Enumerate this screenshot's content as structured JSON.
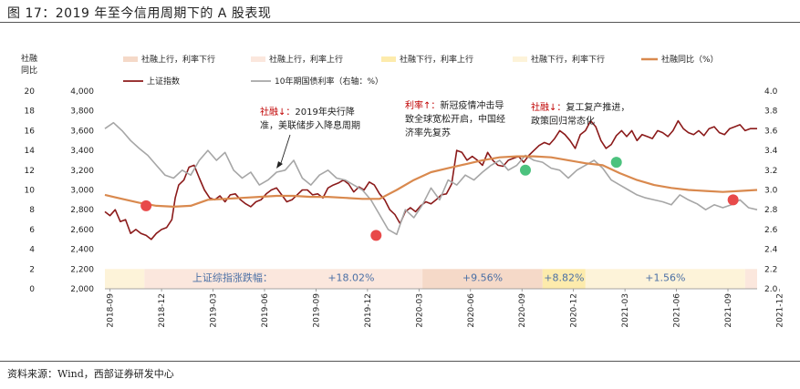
{
  "title": "图 17：2019 年至今信用周期下的 A 股表现",
  "source": "资料来源：Wind，西部证券研发中心",
  "colors": {
    "index_line": "#8B1A1A",
    "bond_line": "#A6A6A6",
    "tsf_line": "#D9894E",
    "band_peach": "#F5D9C8",
    "band_pink": "#FBE7DD",
    "band_yellow": "#FDEBAC",
    "band_cream": "#FDF3D9",
    "dot_red": "#E84A4A",
    "dot_green": "#4CC27E",
    "annotation_red": "#C00000"
  },
  "chart_data": {
    "type": "line",
    "legend": [
      {
        "key": "band_peach",
        "label": "社融上行，利率下行"
      },
      {
        "key": "band_pink",
        "label": "社融上行，利率上行"
      },
      {
        "key": "band_yellow",
        "label": "社融下行，利率上行"
      },
      {
        "key": "band_cream",
        "label": "社融下行，利率下行"
      },
      {
        "key": "tsf_line",
        "label": "社融同比（%）"
      },
      {
        "key": "index_line",
        "label": "上证指数"
      },
      {
        "key": "bond_line",
        "label": "10年期国债利率（右轴：%）"
      }
    ],
    "left_axis1": {
      "title": [
        "社融",
        "同比"
      ],
      "ticks": [
        "20",
        "18",
        "16",
        "14",
        "12",
        "10",
        "8",
        "6",
        "4",
        "2",
        "0"
      ],
      "ylim": [
        0,
        20
      ]
    },
    "left_axis2": {
      "ticks": [
        "4,000",
        "3,800",
        "3,600",
        "3,400",
        "3,200",
        "3,000",
        "2,800",
        "2,600",
        "2,400",
        "2,200",
        "2,000"
      ],
      "ylim": [
        2000,
        4000
      ]
    },
    "right_axis": {
      "ticks": [
        "4.0",
        "3.8",
        "3.6",
        "3.4",
        "3.2",
        "3.0",
        "2.8",
        "2.6",
        "2.4",
        "2.2",
        "2.0"
      ],
      "ylim": [
        2.0,
        4.0
      ]
    },
    "x_ticks": [
      "2018-09",
      "2018-12",
      "2019-03",
      "2019-06",
      "2019-09",
      "2019-12",
      "2020-03",
      "2020-06",
      "2020-09",
      "2020-12",
      "2021-03",
      "2021-06",
      "2021-09",
      "2021-12"
    ],
    "x_range": [
      "2018-09",
      "2022-01"
    ],
    "bands": [
      {
        "start": 0.0,
        "end": 2.3,
        "color": "band_cream",
        "label": ""
      },
      {
        "start": 2.3,
        "end": 18.5,
        "color": "band_pink",
        "label": "上证综指涨跌幅：　　　　　　+18.02%"
      },
      {
        "start": 18.5,
        "end": 25.5,
        "color": "band_peach",
        "label": "+9.56%"
      },
      {
        "start": 25.5,
        "end": 28.0,
        "color": "band_yellow",
        "label": "+8.82%"
      },
      {
        "start": 28.0,
        "end": 37.3,
        "color": "band_cream",
        "label": "+1.56%"
      },
      {
        "start": 37.3,
        "end": 38.0,
        "color": "band_pink",
        "label": ""
      }
    ],
    "series": [
      {
        "name": "上证指数",
        "axis": "left2",
        "x": [
          0,
          0.3,
          0.6,
          0.9,
          1.2,
          1.5,
          1.8,
          2.1,
          2.4,
          2.7,
          3.0,
          3.3,
          3.6,
          3.9,
          4.1,
          4.3,
          4.6,
          4.9,
          5.2,
          5.5,
          5.8,
          6.1,
          6.4,
          6.7,
          7.0,
          7.3,
          7.6,
          7.9,
          8.2,
          8.5,
          8.8,
          9.1,
          9.4,
          9.7,
          10.0,
          10.3,
          10.6,
          10.9,
          11.2,
          11.5,
          11.8,
          12.1,
          12.4,
          12.7,
          13.0,
          13.3,
          13.6,
          13.9,
          14.2,
          14.5,
          14.8,
          15.1,
          15.4,
          15.7,
          16.0,
          16.3,
          16.6,
          16.9,
          17.2,
          17.5,
          17.8,
          18.1,
          18.4,
          18.7,
          19.0,
          19.3,
          19.6,
          19.9,
          20.2,
          20.5,
          20.8,
          21.1,
          21.4,
          21.7,
          22.0,
          22.3,
          22.6,
          22.9,
          23.2,
          23.5,
          23.8,
          24.1,
          24.4,
          24.7,
          25.0,
          25.3,
          25.6,
          25.9,
          26.2,
          26.5,
          26.8,
          27.1,
          27.4,
          27.7,
          28.0,
          28.3,
          28.6,
          28.9,
          29.2,
          29.5,
          29.8,
          30.1,
          30.4,
          30.7,
          31.0,
          31.3,
          31.6,
          31.9,
          32.2,
          32.5,
          32.8,
          33.1,
          33.4,
          33.7,
          34.0,
          34.3,
          34.6,
          34.9,
          35.2,
          35.5,
          35.8,
          36.1,
          36.4,
          36.7,
          37.0,
          37.3,
          37.6,
          38.0
        ],
        "values": [
          2780,
          2740,
          2800,
          2680,
          2700,
          2560,
          2600,
          2560,
          2540,
          2500,
          2560,
          2600,
          2620,
          2700,
          2920,
          3050,
          3100,
          3230,
          3250,
          3120,
          3000,
          2920,
          2900,
          2940,
          2880,
          2950,
          2960,
          2900,
          2860,
          2830,
          2880,
          2900,
          2960,
          3000,
          3020,
          2950,
          2880,
          2900,
          2950,
          3000,
          3000,
          2950,
          2960,
          2920,
          3020,
          3050,
          3070,
          3100,
          3060,
          2980,
          3030,
          3000,
          3080,
          3050,
          2960,
          2900,
          2800,
          2750,
          2660,
          2780,
          2820,
          2780,
          2840,
          2880,
          2860,
          2900,
          2950,
          2960,
          3060,
          3400,
          3380,
          3300,
          3340,
          3300,
          3250,
          3380,
          3300,
          3250,
          3240,
          3300,
          3320,
          3340,
          3280,
          3350,
          3400,
          3450,
          3480,
          3460,
          3520,
          3600,
          3560,
          3500,
          3420,
          3560,
          3600,
          3700,
          3640,
          3500,
          3420,
          3460,
          3550,
          3600,
          3540,
          3600,
          3500,
          3560,
          3540,
          3520,
          3600,
          3580,
          3540,
          3600,
          3700,
          3620,
          3580,
          3560,
          3600,
          3550,
          3620,
          3640,
          3580,
          3560,
          3620,
          3640,
          3660,
          3600,
          3620,
          3620
        ]
      },
      {
        "name": "10年期国债利率",
        "axis": "right",
        "x": [
          0,
          0.5,
          1.0,
          1.5,
          2.0,
          2.5,
          3.0,
          3.5,
          4.0,
          4.5,
          5.0,
          5.5,
          6.0,
          6.5,
          7.0,
          7.5,
          8.0,
          8.5,
          9.0,
          9.5,
          10.0,
          10.5,
          11.0,
          11.5,
          12.0,
          12.5,
          13.0,
          13.5,
          14.0,
          14.5,
          15.0,
          15.5,
          16.0,
          16.5,
          17.0,
          17.5,
          18.0,
          18.5,
          19.0,
          19.5,
          20.0,
          20.5,
          21.0,
          21.5,
          22.0,
          22.5,
          23.0,
          23.5,
          24.0,
          24.5,
          25.0,
          25.5,
          26.0,
          26.5,
          27.0,
          27.5,
          28.0,
          28.5,
          29.0,
          29.5,
          30.0,
          30.5,
          31.0,
          31.5,
          32.0,
          32.5,
          33.0,
          33.5,
          34.0,
          34.5,
          35.0,
          35.5,
          36.0,
          36.5,
          37.0,
          37.5,
          38.0
        ],
        "values": [
          3.62,
          3.68,
          3.6,
          3.5,
          3.42,
          3.35,
          3.25,
          3.15,
          3.12,
          3.2,
          3.15,
          3.3,
          3.4,
          3.3,
          3.38,
          3.2,
          3.12,
          3.18,
          3.05,
          3.1,
          3.18,
          3.2,
          3.3,
          3.12,
          3.05,
          3.15,
          3.2,
          3.12,
          3.1,
          3.05,
          3.0,
          2.9,
          2.75,
          2.6,
          2.55,
          2.8,
          2.72,
          2.85,
          3.02,
          2.9,
          3.1,
          3.05,
          3.15,
          3.1,
          3.18,
          3.25,
          3.3,
          3.2,
          3.25,
          3.35,
          3.3,
          3.28,
          3.22,
          3.2,
          3.12,
          3.2,
          3.25,
          3.3,
          3.22,
          3.1,
          3.05,
          3.0,
          2.95,
          2.92,
          2.9,
          2.88,
          2.85,
          2.95,
          2.9,
          2.86,
          2.8,
          2.85,
          2.82,
          2.85,
          2.9,
          2.82,
          2.8
        ]
      },
      {
        "name": "社融同比（%）",
        "axis": "left1",
        "x": [
          0,
          1,
          2,
          3,
          4,
          5,
          6,
          7,
          8,
          9,
          10,
          11,
          12,
          13,
          14,
          15,
          16,
          17,
          18,
          19,
          20,
          21,
          22,
          23,
          24,
          25,
          26,
          27,
          28,
          29,
          30,
          31,
          32,
          33,
          34,
          35,
          36,
          37,
          38
        ],
        "values": [
          9.5,
          9.1,
          8.7,
          8.4,
          8.3,
          8.4,
          9.0,
          9.1,
          9.2,
          9.3,
          9.4,
          9.4,
          9.3,
          9.3,
          9.2,
          9.1,
          9.1,
          10.0,
          11.0,
          11.8,
          12.2,
          12.6,
          13.0,
          13.3,
          13.4,
          13.4,
          13.3,
          13.0,
          12.7,
          12.5,
          11.7,
          11.0,
          10.5,
          10.2,
          10.0,
          9.9,
          9.8,
          9.9,
          10.0
        ]
      }
    ],
    "dots": [
      {
        "x": 2.4,
        "value": 8.4,
        "color": "dot_red"
      },
      {
        "x": 15.8,
        "value": 5.4,
        "color": "dot_red"
      },
      {
        "x": 24.5,
        "value": 12.0,
        "color": "dot_green"
      },
      {
        "x": 29.8,
        "value": 12.8,
        "color": "dot_green"
      },
      {
        "x": 36.6,
        "value": 9.0,
        "color": "dot_red"
      }
    ],
    "annotations": [
      {
        "red": "社融↓：",
        "lines": [
          "2019年央行降",
          "准，美联储步入降息周期"
        ]
      },
      {
        "red": "利率↑：",
        "lines": [
          "新冠疫情冲击导",
          "致全球宽松开启，中国经",
          "济率先复苏"
        ]
      },
      {
        "red": "社融↓：",
        "lines": [
          "复工复产推进，",
          "政策回归常态化"
        ]
      }
    ]
  }
}
